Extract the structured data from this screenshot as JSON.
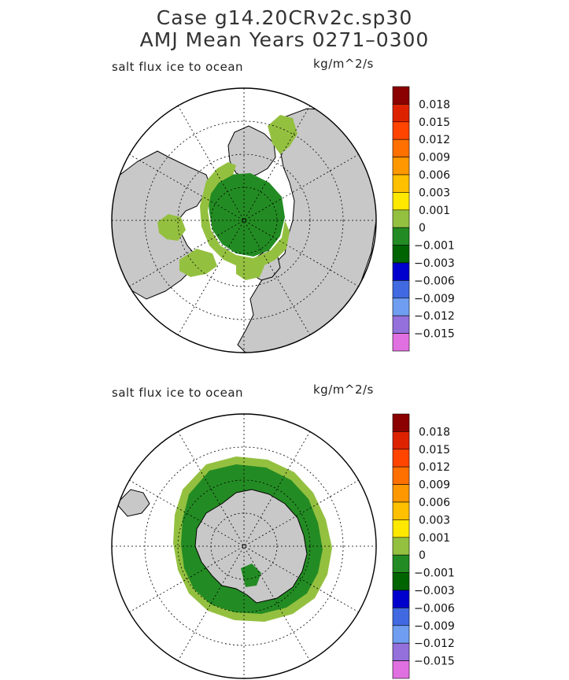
{
  "title": {
    "line1": "Case g14.20CRv2c.sp30",
    "line2": "AMJ Mean   Years 0271–0300"
  },
  "panels": [
    {
      "name": "north",
      "variable_label": "salt flux ice to ocean",
      "units_label": "kg/m^2/s"
    },
    {
      "name": "south",
      "variable_label": "salt flux ice to ocean",
      "units_label": "kg/m^2/s"
    }
  ],
  "colorbar": {
    "colors": [
      "#8b0000",
      "#dd2200",
      "#ff4500",
      "#ff7000",
      "#ff9800",
      "#ffc000",
      "#ffe800",
      "#94c040",
      "#238b23",
      "#006400",
      "#0000cd",
      "#4169e1",
      "#6f9ef0",
      "#9370db",
      "#e070e0"
    ],
    "tick_labels": [
      "0.018",
      "0.015",
      "0.012",
      "0.009",
      "0.006",
      "0.003",
      "0.001",
      "0",
      "−0.001",
      "−0.003",
      "−0.006",
      "−0.009",
      "−0.012",
      "−0.015"
    ]
  },
  "map_colors": {
    "land": "#c8c8c8",
    "ocean": "#ffffff",
    "positive_flux": "#94c040",
    "small_negative_flux": "#238b23"
  }
}
